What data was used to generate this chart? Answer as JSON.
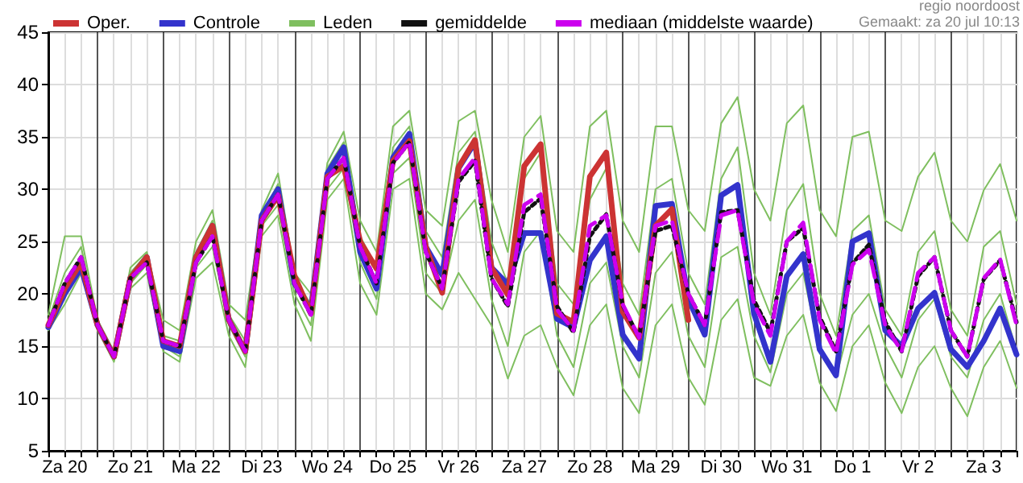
{
  "chart_data": {
    "type": "line",
    "legend": "top",
    "grid": true,
    "marker": "none",
    "annotations": [
      "regio noordoost",
      "Gemaakt: za 20 jul 10:13"
    ],
    "categories": [
      null,
      "Za 20",
      null,
      null,
      null,
      "Zo 21",
      null,
      null,
      null,
      "Ma 22",
      null,
      null,
      null,
      "Di 23",
      null,
      null,
      null,
      "Wo 24",
      null,
      null,
      null,
      "Do 25",
      null,
      null,
      null,
      "Vr 26",
      null,
      null,
      null,
      "Za 27",
      null,
      null,
      null,
      "Zo 28",
      null,
      null,
      null,
      "Ma 29",
      null,
      null,
      null,
      "Di 30",
      null,
      null,
      null,
      "Wo 31",
      null,
      null,
      null,
      "Do 1",
      null,
      null,
      null,
      "Vr 2",
      null,
      null,
      null,
      "Za 3",
      null,
      null
    ],
    "ylim": [
      5,
      45
    ],
    "yticks": [
      5,
      10,
      15,
      20,
      25,
      30,
      35,
      40,
      45
    ],
    "series": [
      {
        "name": "Oper.",
        "color": "#cc3333",
        "values": [
          17,
          20.5,
          23,
          17,
          14,
          21.5,
          23.5,
          15.5,
          15,
          23.5,
          26.5,
          17.5,
          14.5,
          27,
          29.4,
          21.7,
          18.1,
          31.2,
          32.2,
          25,
          22.4,
          32.7,
          34.6,
          24.5,
          20.1,
          32.1,
          34.7,
          22.5,
          19.9,
          32.2,
          34.3,
          18.1,
          17.3,
          31.2,
          33.5,
          18.3,
          15.8,
          26.5,
          28.1,
          17.5,
          null,
          null,
          null,
          null,
          null,
          null,
          null,
          null,
          null,
          null,
          null,
          null,
          null,
          null,
          null,
          null,
          null,
          null,
          null,
          null
        ]
      },
      {
        "name": "Controle",
        "color": "#3333cc",
        "values": [
          16.8,
          20,
          22.5,
          17,
          14,
          21.5,
          23.5,
          15,
          14.5,
          23.5,
          26.5,
          17.5,
          14.5,
          27.5,
          30,
          21,
          18.5,
          31.5,
          34,
          24,
          20.5,
          33,
          35.3,
          24.5,
          21.8,
          32,
          34.5,
          22.5,
          20.9,
          25.8,
          25.8,
          17.6,
          16.8,
          23.2,
          25.5,
          16.1,
          13.8,
          28.4,
          28.6,
          19.5,
          16.1,
          29.4,
          30.4,
          18.1,
          13.5,
          21.7,
          23.8,
          14.7,
          12.2,
          25,
          25.8,
          16.5,
          15,
          18.6,
          20.1,
          14.7,
          13,
          15.5,
          18.6,
          14.2
        ]
      },
      {
        "name": "Leden",
        "color": "#7fbf5f",
        "values": [
          18,
          25.5,
          25.5,
          17.5,
          14.5,
          22.5,
          24,
          17.5,
          16.5,
          25,
          28,
          19,
          17.5,
          28,
          31.5,
          22,
          20,
          32.5,
          35.5,
          27,
          24,
          36,
          37.5,
          28,
          26.5,
          36.5,
          37.5,
          29,
          24,
          35,
          37,
          26,
          24,
          36,
          37.5,
          27,
          24,
          36,
          36,
          28,
          26,
          36.3,
          38.8,
          30,
          27,
          36.3,
          38,
          28,
          25.5,
          35,
          35.5,
          27,
          26,
          31.2,
          33.5,
          27,
          25,
          29.9,
          32.4,
          27
        ]
      },
      {
        "color": "#7fbf5f",
        "values": [
          17.5,
          22,
          24.5,
          17,
          14,
          22,
          23.8,
          16,
          15.5,
          24,
          27,
          18,
          15.5,
          27.5,
          30.5,
          21.5,
          19,
          32,
          34.5,
          25.5,
          22.5,
          34,
          36,
          26,
          23.5,
          33.5,
          35.5,
          25,
          21,
          31,
          33.5,
          21,
          19,
          29,
          32,
          21,
          18,
          30,
          31,
          22,
          19,
          31,
          34,
          22,
          18,
          28,
          30.5,
          20,
          16,
          26,
          27.5,
          18.5,
          16,
          24,
          26,
          18.5,
          16,
          24.5,
          26,
          19
        ]
      },
      {
        "color": "#7fbf5f",
        "values": [
          16.8,
          20,
          22.5,
          16.5,
          13.8,
          21,
          22.8,
          15,
          14,
          22.5,
          24.5,
          17,
          14,
          26.5,
          28.5,
          20,
          17,
          30,
          32,
          23,
          19.5,
          31.5,
          33,
          22,
          20,
          27,
          29,
          19.5,
          15,
          24,
          26,
          16,
          13,
          21,
          23,
          15,
          12,
          22,
          24,
          16,
          13,
          23.5,
          24.5,
          16,
          12.5,
          20,
          22,
          14.5,
          12,
          18,
          20,
          15,
          12,
          17.5,
          19.5,
          14,
          12,
          17.5,
          20,
          14.5
        ]
      },
      {
        "color": "#7fbf5f",
        "values": [
          16.5,
          19,
          22,
          16.5,
          13.5,
          20.5,
          22,
          14.5,
          13.5,
          21.5,
          23,
          16,
          13,
          25.5,
          27.5,
          19,
          15.5,
          29,
          31,
          21,
          18,
          30,
          31,
          20,
          18.5,
          22,
          19.5,
          17,
          11.9,
          16,
          17,
          13,
          10.3,
          17,
          19,
          11,
          8.6,
          17,
          19,
          12,
          9.4,
          17.5,
          19.5,
          12,
          11.2,
          16,
          18,
          11.5,
          8.8,
          15,
          17,
          11.5,
          8.6,
          13,
          15,
          11,
          8.3,
          13,
          15.5,
          11
        ]
      },
      {
        "name": "gemiddelde",
        "color": "#111111",
        "line_style": "dotted",
        "values": [
          17,
          21,
          23.5,
          17,
          14,
          21.5,
          23,
          15.5,
          15,
          23,
          25.5,
          17.5,
          14.5,
          27,
          29.5,
          21,
          18,
          31,
          33,
          24.5,
          21,
          32.5,
          34.5,
          24,
          20.5,
          30.7,
          32.7,
          21.5,
          18.8,
          27.8,
          29.1,
          18.8,
          16.3,
          25.5,
          27.6,
          18.9,
          15.8,
          26,
          26.5,
          20,
          17,
          27.8,
          28,
          19.4,
          16.3,
          25,
          26.3,
          17.8,
          14.5,
          22.9,
          24.7,
          17.3,
          14.5,
          21.7,
          23.5,
          16.5,
          14,
          21.4,
          23.2,
          17.3
        ]
      },
      {
        "name": "mediaan (middelste waarde)",
        "color": "#cc00ee",
        "line_style": "dashed",
        "values": [
          17,
          21,
          23.5,
          17,
          14,
          21.5,
          23,
          15.5,
          15,
          23,
          25.5,
          17.5,
          14.5,
          27,
          29.5,
          21,
          18,
          31,
          33,
          24.5,
          21,
          32.5,
          34.5,
          24,
          20.5,
          31,
          33,
          21.5,
          19,
          28.5,
          29.5,
          18.5,
          16.5,
          26.5,
          27.5,
          19,
          15.8,
          26.5,
          27,
          20,
          17,
          27.5,
          28,
          19,
          16,
          25,
          26.8,
          17.5,
          14.3,
          22.8,
          24.2,
          17,
          14.5,
          22,
          23.5,
          16.5,
          14,
          21.5,
          23.3,
          17
        ]
      }
    ]
  }
}
